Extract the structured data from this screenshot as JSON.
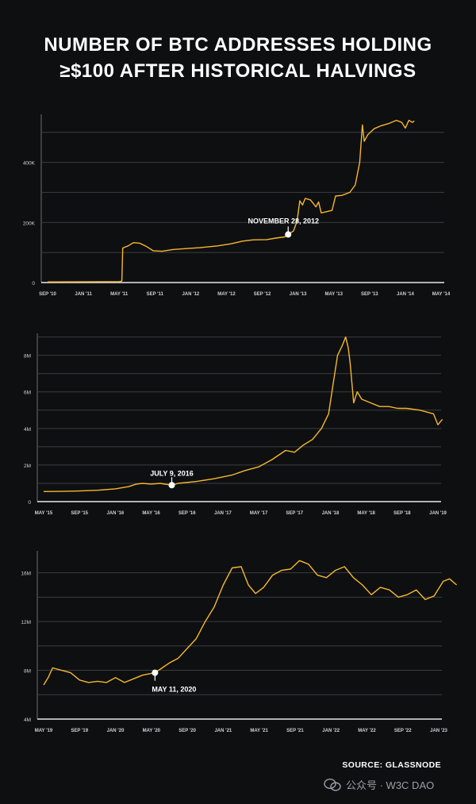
{
  "title_line1": "NUMBER OF BTC ADDRESSES HOLDING",
  "title_line2": "≥$100 AFTER HISTORICAL HALVINGS",
  "source": "SOURCE: GLASSNODE",
  "watermark": "公众号 · W3C DAO",
  "colors": {
    "background": "#0e0f11",
    "line": "#f5b82e",
    "grid": "#3a3d42",
    "text": "#ffffff",
    "axis_text": "#cfd2d6"
  },
  "chart_data": [
    {
      "type": "line",
      "title": "",
      "xlabel": "",
      "ylabel": "",
      "x_ticks": [
        "SEP '10",
        "JAN '11",
        "MAY '11",
        "SEP '11",
        "JAN '12",
        "MAY '12",
        "SEP '12",
        "JAN '13",
        "MAY '13",
        "SEP '13",
        "JAN '14",
        "MAY '14"
      ],
      "y_ticks": [
        0,
        200000,
        400000
      ],
      "y_tick_labels": [
        "0",
        "200K",
        "400K"
      ],
      "ylim": [
        0,
        560000
      ],
      "grid": true,
      "annotation": {
        "label": "NOVEMBER 28, 2012",
        "x": 26.9,
        "y": 160000
      },
      "points": [
        [
          0,
          2000
        ],
        [
          8,
          3000
        ],
        [
          8.3,
          5000
        ],
        [
          8.4,
          115000
        ],
        [
          9,
          122000
        ],
        [
          9.6,
          133000
        ],
        [
          10.3,
          131000
        ],
        [
          11,
          121000
        ],
        [
          11.8,
          106000
        ],
        [
          12.8,
          104000
        ],
        [
          14,
          110000
        ],
        [
          15.5,
          113000
        ],
        [
          17,
          116000
        ],
        [
          19,
          122000
        ],
        [
          20.5,
          129000
        ],
        [
          21.8,
          138000
        ],
        [
          23,
          142000
        ],
        [
          24.5,
          143000
        ],
        [
          25.5,
          148000
        ],
        [
          26.5,
          152000
        ],
        [
          26.9,
          160000
        ],
        [
          27.5,
          172000
        ],
        [
          27.9,
          205000
        ],
        [
          28.2,
          272000
        ],
        [
          28.5,
          258000
        ],
        [
          28.8,
          280000
        ],
        [
          29.4,
          275000
        ],
        [
          30,
          252000
        ],
        [
          30.3,
          268000
        ],
        [
          30.6,
          232000
        ],
        [
          31.2,
          236000
        ],
        [
          31.8,
          240000
        ],
        [
          32.2,
          288000
        ],
        [
          32.9,
          290000
        ],
        [
          33.8,
          300000
        ],
        [
          34.4,
          325000
        ],
        [
          34.9,
          400000
        ],
        [
          35.2,
          525000
        ],
        [
          35.4,
          470000
        ],
        [
          35.8,
          492000
        ],
        [
          36.5,
          512000
        ],
        [
          37.3,
          522000
        ],
        [
          38.2,
          530000
        ],
        [
          39,
          540000
        ],
        [
          39.6,
          533000
        ],
        [
          40,
          514000
        ],
        [
          40.4,
          540000
        ],
        [
          40.8,
          533000
        ],
        [
          41,
          538000
        ]
      ]
    },
    {
      "type": "line",
      "title": "",
      "xlabel": "",
      "ylabel": "",
      "x_ticks": [
        "MAY '15",
        "SEP '15",
        "JAN '16",
        "MAY '16",
        "SEP '16",
        "JAN '17",
        "MAY '17",
        "SEP '17",
        "JAN '18",
        "MAY '18",
        "SEP '18",
        "JAN '19"
      ],
      "y_ticks": [
        0,
        2000000,
        4000000,
        6000000,
        8000000
      ],
      "y_tick_labels": [
        "0",
        "2M",
        "4M",
        "6M",
        "8M"
      ],
      "ylim": [
        0,
        9200000
      ],
      "grid": true,
      "annotation": {
        "label": "JULY 9, 2016",
        "x": 14.3,
        "y": 900000
      },
      "points": [
        [
          0,
          550000
        ],
        [
          2,
          560000
        ],
        [
          4,
          580000
        ],
        [
          6,
          620000
        ],
        [
          8,
          700000
        ],
        [
          9.5,
          820000
        ],
        [
          10.3,
          950000
        ],
        [
          11,
          1000000
        ],
        [
          12,
          960000
        ],
        [
          13,
          1000000
        ],
        [
          14.3,
          900000
        ],
        [
          15,
          1000000
        ],
        [
          17,
          1100000
        ],
        [
          19,
          1250000
        ],
        [
          21,
          1450000
        ],
        [
          22.5,
          1700000
        ],
        [
          24,
          1900000
        ],
        [
          25.5,
          2300000
        ],
        [
          27,
          2800000
        ],
        [
          28,
          2700000
        ],
        [
          29,
          3100000
        ],
        [
          30,
          3400000
        ],
        [
          31,
          4000000
        ],
        [
          31.8,
          4800000
        ],
        [
          32.3,
          6400000
        ],
        [
          32.8,
          8000000
        ],
        [
          33.3,
          8500000
        ],
        [
          33.7,
          9000000
        ],
        [
          34,
          8400000
        ],
        [
          34.2,
          7600000
        ],
        [
          34.6,
          5400000
        ],
        [
          35,
          6000000
        ],
        [
          35.5,
          5600000
        ],
        [
          36.5,
          5400000
        ],
        [
          37.5,
          5200000
        ],
        [
          38.5,
          5200000
        ],
        [
          39.5,
          5100000
        ],
        [
          40.5,
          5100000
        ],
        [
          42,
          5000000
        ],
        [
          43.5,
          4800000
        ],
        [
          44,
          4200000
        ],
        [
          44.5,
          4500000
        ]
      ]
    },
    {
      "type": "line",
      "title": "",
      "xlabel": "",
      "ylabel": "",
      "x_ticks": [
        "MAY '19",
        "SEP '19",
        "JAN '20",
        "MAY '20",
        "SEP '20",
        "JAN '21",
        "MAY '21",
        "SEP '21",
        "JAN '22",
        "MAY '22",
        "SEP '22",
        "JAN '23"
      ],
      "y_ticks": [
        4000000,
        8000000,
        12000000,
        16000000
      ],
      "y_tick_labels": [
        "4M",
        "8M",
        "12M",
        "16M"
      ],
      "ylim": [
        4000000,
        17800000
      ],
      "grid": true,
      "annotation": {
        "label": "MAY 11, 2020",
        "x": 12.4,
        "y": 7800000
      },
      "points": [
        [
          0,
          6800000
        ],
        [
          0.5,
          7400000
        ],
        [
          1,
          8200000
        ],
        [
          2,
          8000000
        ],
        [
          3,
          7800000
        ],
        [
          4,
          7200000
        ],
        [
          5,
          7000000
        ],
        [
          6,
          7100000
        ],
        [
          7,
          7000000
        ],
        [
          8,
          7400000
        ],
        [
          9,
          7000000
        ],
        [
          10,
          7300000
        ],
        [
          11,
          7600000
        ],
        [
          12.4,
          7800000
        ],
        [
          13.2,
          8200000
        ],
        [
          14,
          8600000
        ],
        [
          15,
          9000000
        ],
        [
          16,
          9800000
        ],
        [
          17,
          10600000
        ],
        [
          18,
          12000000
        ],
        [
          19,
          13200000
        ],
        [
          20,
          15000000
        ],
        [
          21,
          16400000
        ],
        [
          22,
          16500000
        ],
        [
          22.8,
          15000000
        ],
        [
          23.6,
          14300000
        ],
        [
          24.5,
          14800000
        ],
        [
          25.5,
          15800000
        ],
        [
          26.5,
          16200000
        ],
        [
          27.5,
          16300000
        ],
        [
          28.5,
          17000000
        ],
        [
          29.5,
          16700000
        ],
        [
          30.5,
          15800000
        ],
        [
          31.5,
          15600000
        ],
        [
          32.5,
          16200000
        ],
        [
          33.5,
          16500000
        ],
        [
          34.5,
          15600000
        ],
        [
          35.5,
          15000000
        ],
        [
          36.5,
          14200000
        ],
        [
          37.5,
          14800000
        ],
        [
          38.5,
          14600000
        ],
        [
          39.5,
          14000000
        ],
        [
          40.5,
          14200000
        ],
        [
          41.5,
          14600000
        ],
        [
          42.5,
          13800000
        ],
        [
          43.5,
          14100000
        ],
        [
          44.5,
          15300000
        ],
        [
          45.2,
          15500000
        ],
        [
          46,
          15000000
        ]
      ]
    }
  ]
}
